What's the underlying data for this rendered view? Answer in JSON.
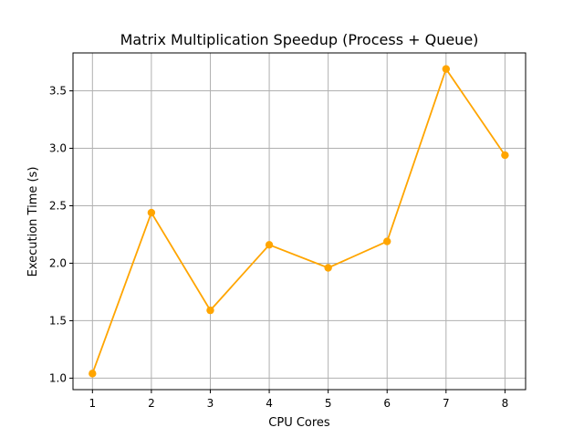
{
  "chart_data": {
    "type": "line",
    "title": "Matrix Multiplication Speedup (Process + Queue)",
    "xlabel": "CPU Cores",
    "ylabel": "Execution Time (s)",
    "x": [
      1,
      2,
      3,
      4,
      5,
      6,
      7,
      8
    ],
    "series": [
      {
        "values": [
          1.04,
          2.44,
          1.59,
          2.16,
          1.96,
          2.19,
          3.69,
          2.94
        ]
      }
    ],
    "xlim": [
      0.67,
      8.35
    ],
    "ylim": [
      0.9,
      3.83
    ],
    "xticks": [
      "1",
      "2",
      "3",
      "4",
      "5",
      "6",
      "7",
      "8"
    ],
    "yticks": [
      "1.0",
      "1.5",
      "2.0",
      "2.5",
      "3.0",
      "3.5"
    ],
    "grid": true,
    "line_color": "#FFA500",
    "marker": "circle"
  }
}
